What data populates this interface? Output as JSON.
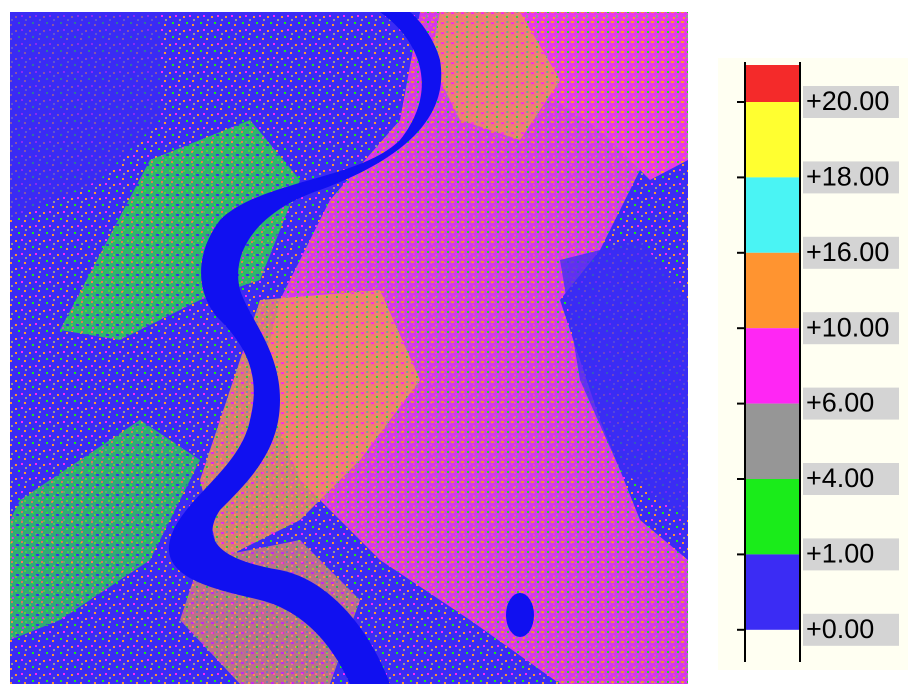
{
  "legend": {
    "items": [
      {
        "label": "+20.00",
        "color": "#f42a2a"
      },
      {
        "label": "+18.00",
        "color": "#ffff30"
      },
      {
        "label": "+16.00",
        "color": "#4af4f4"
      },
      {
        "label": "+10.00",
        "color": "#ff9430"
      },
      {
        "label": "+6.00",
        "color": "#ff26f4"
      },
      {
        "label": "+4.00",
        "color": "#969696"
      },
      {
        "label": "+1.00",
        "color": "#1aec1a"
      },
      {
        "label": "+0.00",
        "color": "#3b2cf4"
      }
    ]
  }
}
